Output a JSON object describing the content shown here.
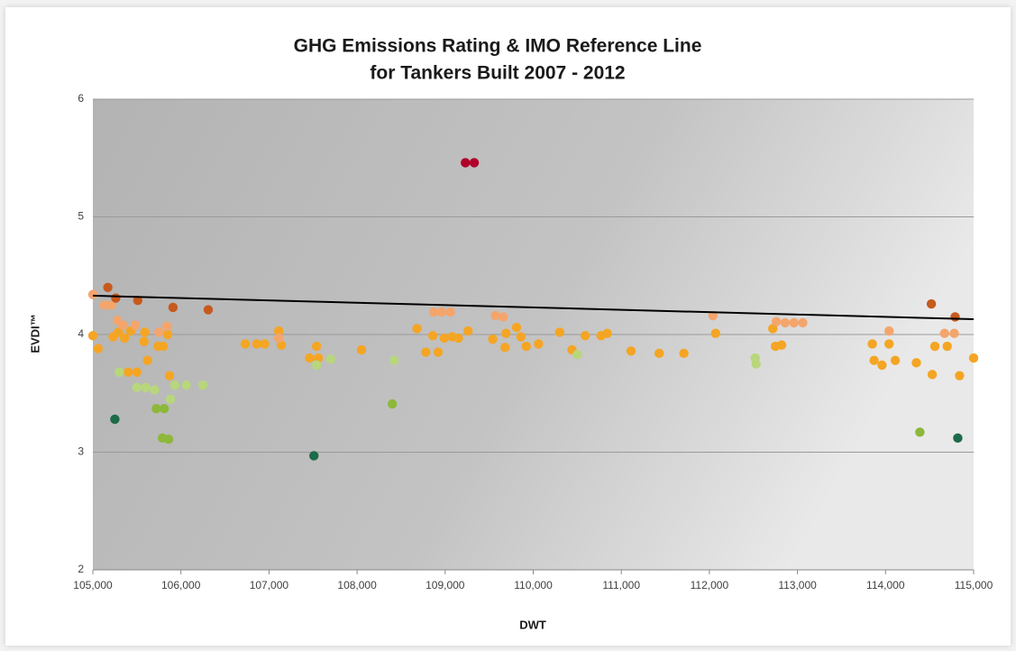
{
  "chart_data": {
    "type": "scatter",
    "title": [
      "GHG Emissions Rating & IMO Reference Line",
      "for Tankers Built 2007 - 2012"
    ],
    "xlabel": "DWT",
    "ylabel": "EVDI™",
    "xlim": [
      105000,
      115000
    ],
    "xticks": [
      {
        "value": 105000,
        "label": "105,000"
      },
      {
        "value": 106000,
        "label": "106,000"
      },
      {
        "value": 107000,
        "label": "107,000"
      },
      {
        "value": 108000,
        "label": "108,000"
      },
      {
        "value": 109000,
        "label": "109,000"
      },
      {
        "value": 110000,
        "label": "110,000"
      },
      {
        "value": 111000,
        "label": "111,000"
      },
      {
        "value": 112000,
        "label": "112,000"
      },
      {
        "value": 113000,
        "label": "113,000"
      },
      {
        "value": 114000,
        "label": "114,000"
      },
      {
        "value": 115000,
        "label": "115,000"
      }
    ],
    "ylim": [
      2,
      6
    ],
    "yticks": [
      2,
      3,
      4,
      5,
      6
    ],
    "grid": true,
    "series": [
      {
        "color": "#f5a524",
        "x": [
          105000,
          105060,
          105230,
          105290,
          105360,
          105430,
          105590,
          105580,
          105740,
          105800,
          105850,
          105620,
          105870,
          105400,
          105500,
          106730,
          106860,
          106950,
          107110,
          107140,
          107460,
          107540,
          107560,
          108050,
          108680,
          108780,
          108860,
          108920,
          108990,
          109080,
          109150,
          109260,
          109540,
          109680,
          109690,
          109810,
          109860,
          109920,
          110060,
          110300,
          110440,
          110590,
          110770,
          110840,
          111110,
          111430,
          111710,
          112070,
          112720,
          112750,
          112820,
          113850,
          113870,
          113960,
          114040,
          114110,
          114350,
          114530,
          114560,
          114700,
          114840,
          115000
        ],
        "values": [
          3.99,
          3.88,
          3.98,
          4.02,
          3.97,
          4.03,
          4.02,
          3.94,
          3.9,
          3.9,
          4.0,
          3.78,
          3.65,
          3.68,
          3.68,
          3.92,
          3.92,
          3.92,
          4.03,
          3.91,
          3.8,
          3.9,
          3.8,
          3.87,
          4.05,
          3.85,
          3.99,
          3.85,
          3.97,
          3.98,
          3.97,
          4.03,
          3.96,
          3.89,
          4.01,
          4.06,
          3.98,
          3.9,
          3.92,
          4.02,
          3.87,
          3.99,
          3.99,
          4.01,
          3.86,
          3.84,
          3.84,
          4.01,
          4.05,
          3.9,
          3.91,
          3.92,
          3.78,
          3.74,
          3.92,
          3.78,
          3.76,
          3.66,
          3.9,
          3.9,
          3.65,
          3.8
        ]
      },
      {
        "color": "#f4a56c",
        "x": [
          105000,
          105130,
          105210,
          105280,
          105340,
          105480,
          105750,
          105840,
          107110,
          108870,
          108960,
          109060,
          109570,
          109660,
          112040,
          112760,
          112860,
          112960,
          113060,
          114040,
          114670,
          114780
        ],
        "values": [
          4.34,
          4.25,
          4.25,
          4.12,
          4.08,
          4.08,
          4.02,
          4.07,
          3.97,
          4.19,
          4.19,
          4.19,
          4.16,
          4.15,
          4.16,
          4.11,
          4.1,
          4.1,
          4.1,
          4.03,
          4.01,
          4.01
        ]
      },
      {
        "color": "#c65a1e",
        "x": [
          105170,
          105510,
          105260,
          105910,
          106310,
          114520,
          114790
        ],
        "values": [
          4.4,
          4.29,
          4.31,
          4.23,
          4.21,
          4.26,
          4.15
        ]
      },
      {
        "color": "#b0002a",
        "x": [
          109230,
          109330
        ],
        "values": [
          5.46,
          5.46
        ]
      },
      {
        "color": "#b8d67c",
        "x": [
          105300,
          105500,
          105600,
          105700,
          105880,
          105930,
          106060,
          106250,
          107540,
          107700,
          108420,
          110500,
          112520,
          112530
        ],
        "values": [
          3.68,
          3.55,
          3.55,
          3.53,
          3.45,
          3.57,
          3.57,
          3.57,
          3.74,
          3.79,
          3.78,
          3.83,
          3.8,
          3.75
        ]
      },
      {
        "color": "#8db83a",
        "x": [
          105720,
          105810,
          105790,
          105860,
          108400,
          114390
        ],
        "values": [
          3.37,
          3.37,
          3.12,
          3.11,
          3.41,
          3.17
        ]
      },
      {
        "color": "#1d6b48",
        "x": [
          105250,
          107510,
          114820
        ],
        "values": [
          3.28,
          2.97,
          3.12
        ]
      }
    ],
    "reference_line": {
      "color": "#000000",
      "x": [
        105000,
        115000
      ],
      "values": [
        4.33,
        4.13
      ]
    }
  }
}
